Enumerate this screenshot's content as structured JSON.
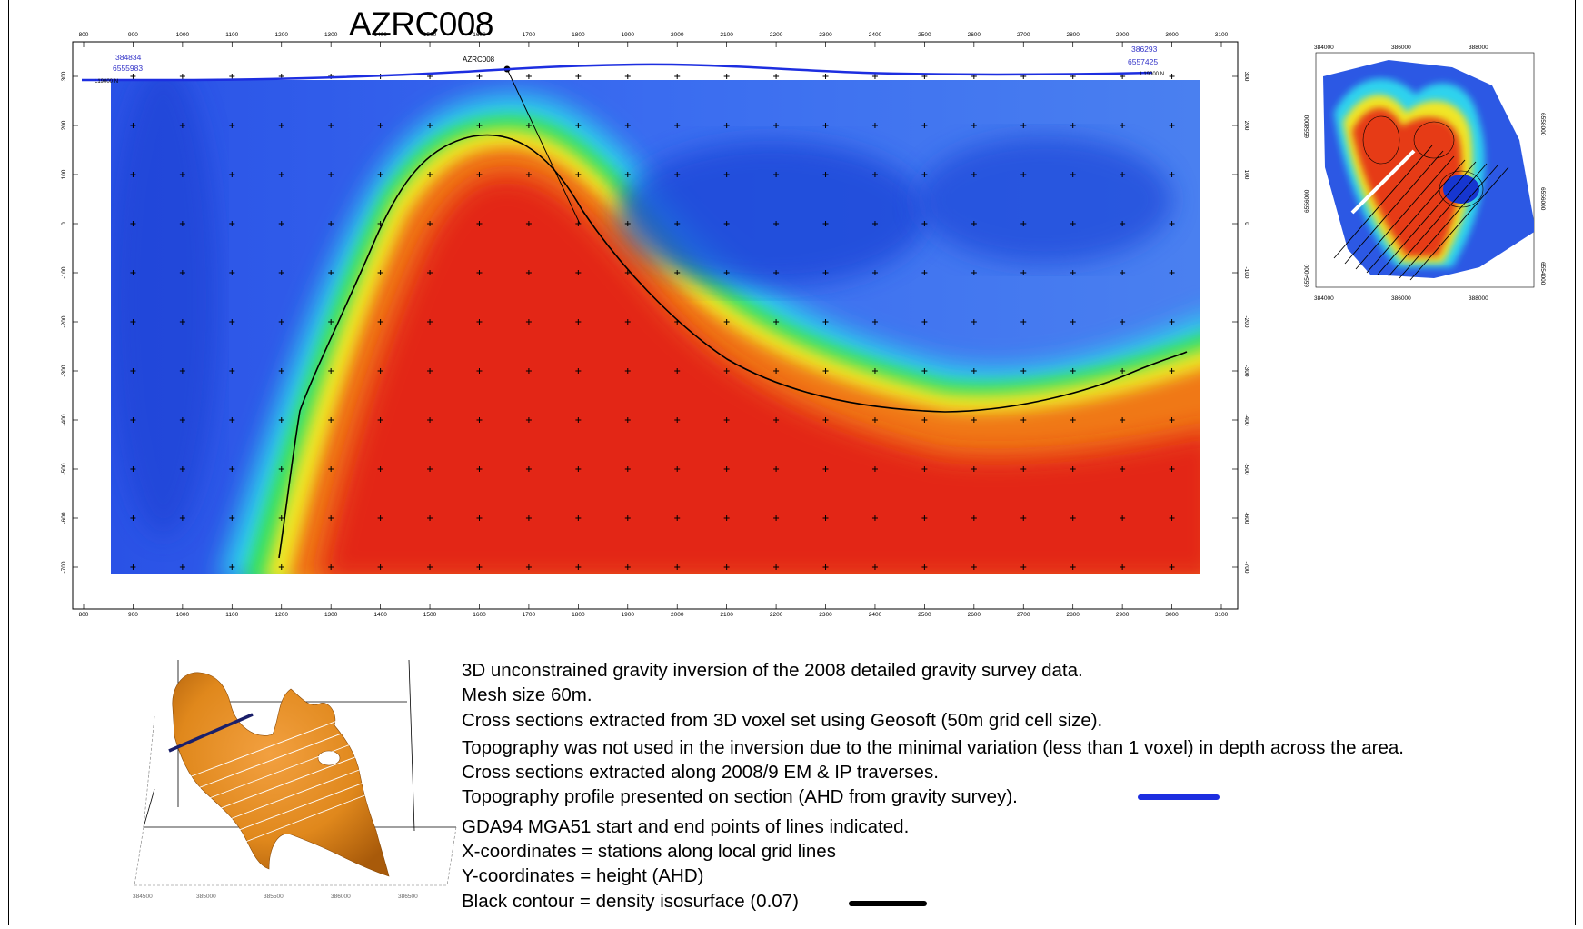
{
  "section": {
    "title": "AZRC008",
    "drillhole_label": "AZRC008",
    "start_point": {
      "easting": "384834",
      "northing": "6555983"
    },
    "end_point": {
      "easting": "386293",
      "northing": "6557425"
    },
    "line_label_left": "L19000 N",
    "line_label_right": "L19000 N",
    "x_ticks": [
      "800",
      "900",
      "1000",
      "1100",
      "1200",
      "1300",
      "1400",
      "1500",
      "1600",
      "1700",
      "1800",
      "1900",
      "2000",
      "2100",
      "2200",
      "2300",
      "2400",
      "2500",
      "2600",
      "2700",
      "2800",
      "2900",
      "3000",
      "3100"
    ],
    "y_ticks": [
      "300",
      "200",
      "100",
      "0",
      "-100",
      "-200",
      "-300",
      "-400",
      "-500",
      "-600",
      "-700"
    ],
    "x_range": [
      800,
      3100
    ],
    "y_range": [
      -700,
      300
    ]
  },
  "inset_map": {
    "top_ticks": [
      "384000",
      "386000",
      "388000"
    ],
    "bottom_ticks": [
      "384000",
      "386000",
      "388000"
    ],
    "left_ticks": [
      "6558000",
      "6556000",
      "6554000"
    ],
    "right_ticks": [
      "6558000",
      "6556000",
      "6554000"
    ]
  },
  "voxel_model": {
    "bottom_ticks": [
      "384500",
      "385000",
      "385500",
      "386000",
      "386500"
    ]
  },
  "notes": {
    "line1": "3D unconstrained gravity inversion of the 2008 detailed gravity survey data.",
    "line2": "Mesh size 60m.",
    "line3": "Cross sections extracted from 3D voxel set using Geosoft (50m grid cell size).",
    "line4": "Topography was not used in the inversion due to the minimal variation (less than 1 voxel) in depth across the area.",
    "line5": "Cross sections extracted along 2008/9 EM & IP traverses.",
    "line6": "Topography profile presented on section (AHD from gravity survey).",
    "line7": "GDA94 MGA51 start and end points of lines indicated.",
    "line8": "X-coordinates = stations along local grid lines",
    "line9": "Y-coordinates = height (AHD)",
    "line10": "Black contour = density isosurface (0.07)"
  },
  "colors": {
    "topography": "#1d2ee0",
    "contour": "#000000",
    "low_density": "#1a3fd6",
    "high_density": "#e02010"
  }
}
